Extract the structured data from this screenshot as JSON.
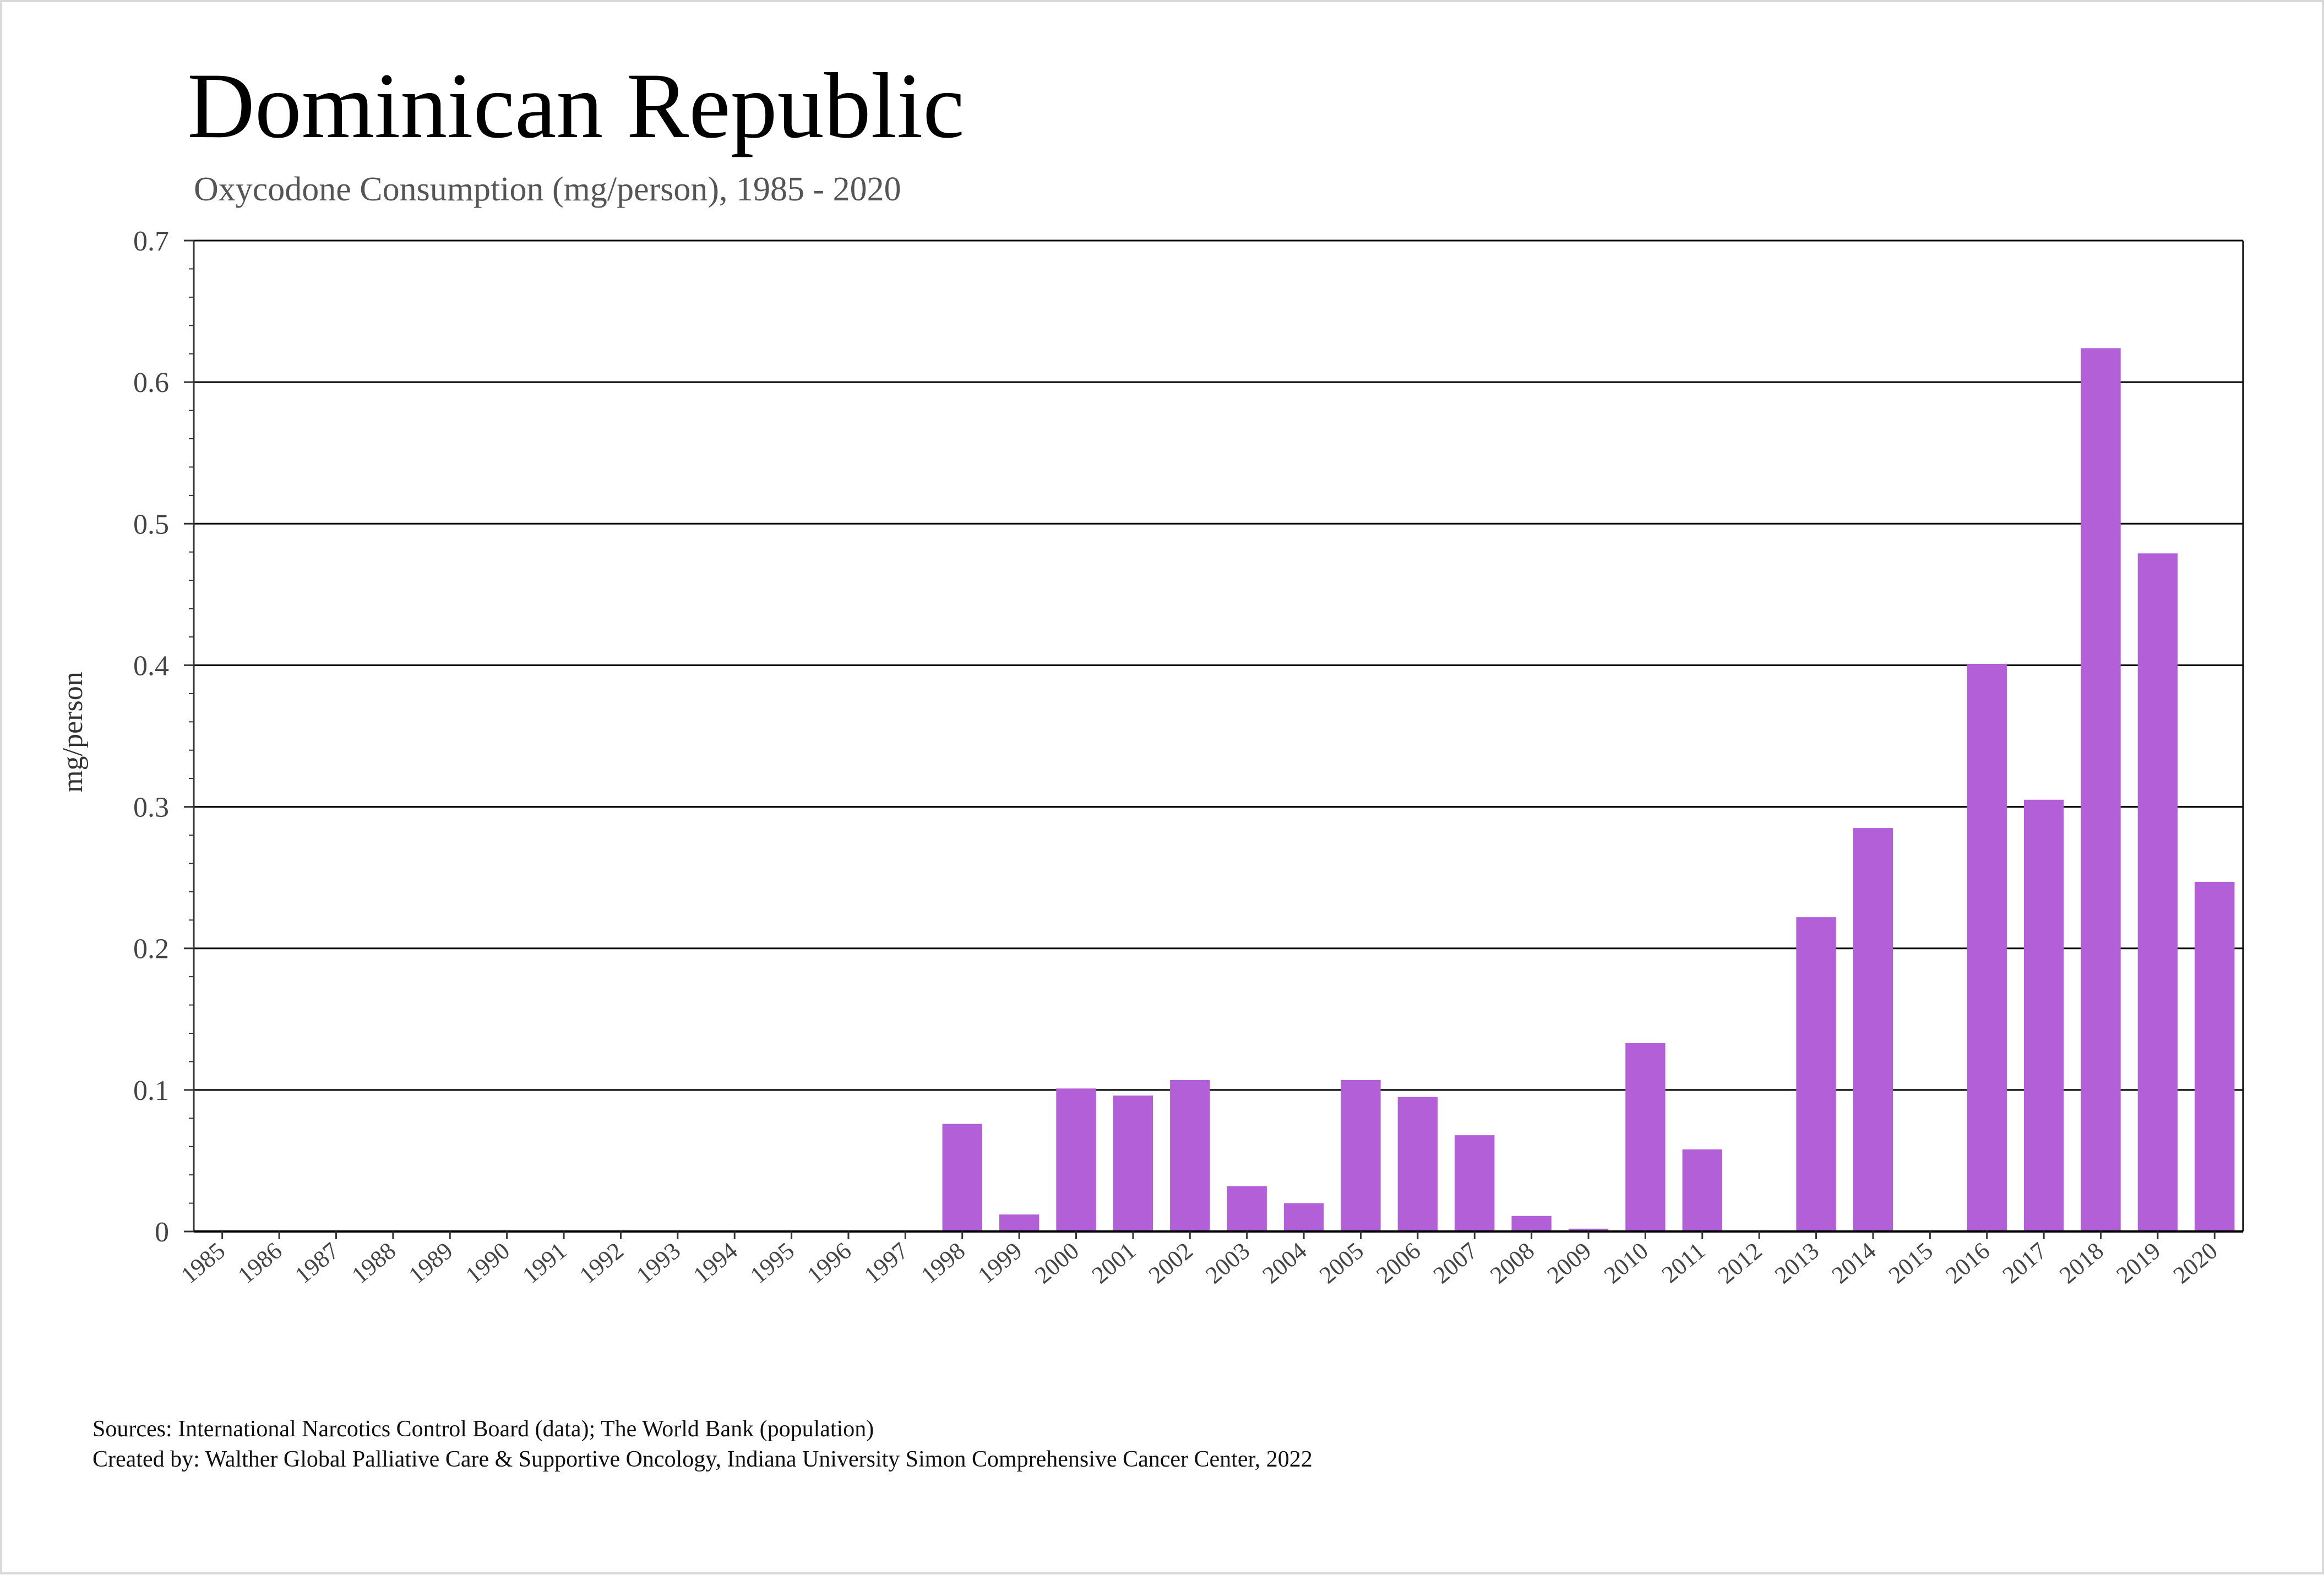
{
  "header": {
    "title": "Dominican Republic",
    "subtitle": "Oxycodone Consumption (mg/person), 1985 - 2020"
  },
  "footer": {
    "sources": "Sources: International Narcotics Control Board (data); The World Bank (population)",
    "created_by": "Created by: Walther Global Palliative Care & Supportive Oncology, Indiana University Simon Comprehensive Cancer Center, 2022"
  },
  "chart_data": {
    "type": "bar",
    "title": "Dominican Republic",
    "subtitle": "Oxycodone Consumption (mg/person), 1985 - 2020",
    "xlabel": "",
    "ylabel": "mg/person",
    "ylim": [
      0,
      0.7
    ],
    "yticks": [
      "0",
      "0.1",
      "0.2",
      "0.3",
      "0.4",
      "0.5",
      "0.6",
      "0.7"
    ],
    "grid": true,
    "bar_color": "#b360d8",
    "categories": [
      "1985",
      "1986",
      "1987",
      "1988",
      "1989",
      "1990",
      "1991",
      "1992",
      "1993",
      "1994",
      "1995",
      "1996",
      "1997",
      "1998",
      "1999",
      "2000",
      "2001",
      "2002",
      "2003",
      "2004",
      "2005",
      "2006",
      "2007",
      "2008",
      "2009",
      "2010",
      "2011",
      "2012",
      "2013",
      "2014",
      "2015",
      "2016",
      "2017",
      "2018",
      "2019",
      "2020"
    ],
    "values": [
      0,
      0,
      0,
      0,
      0,
      0,
      0,
      0,
      0,
      0,
      0,
      0,
      0,
      0.076,
      0.012,
      0.101,
      0.096,
      0.107,
      0.032,
      0.02,
      0.107,
      0.095,
      0.068,
      0.011,
      0.002,
      0.133,
      0.058,
      0,
      0.222,
      0.285,
      0,
      0.401,
      0.305,
      0.624,
      0.479,
      0.247
    ]
  }
}
